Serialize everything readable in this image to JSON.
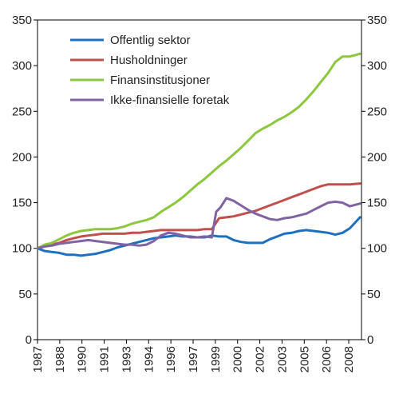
{
  "chart_data": {
    "type": "line",
    "title": "",
    "xlabel": "",
    "ylabel": "",
    "ylim": [
      0,
      350
    ],
    "yticks": [
      0,
      50,
      100,
      150,
      200,
      250,
      300,
      350
    ],
    "yticks_right": [
      0,
      50,
      100,
      150,
      200,
      250,
      300,
      350
    ],
    "xlim": [
      1987,
      2009.3
    ],
    "xtick_labels": [
      "1987",
      "1988",
      "1990",
      "1991",
      "1993",
      "1994",
      "1996",
      "1997",
      "1999",
      "2000",
      "2002",
      "2003",
      "2005",
      "2006",
      "2008"
    ],
    "grid": false,
    "legend_position": "top-left",
    "series": [
      {
        "name": "Offentlig sektor",
        "color": "#1f6fbf",
        "points": [
          [
            1987,
            100
          ],
          [
            1987.5,
            97
          ],
          [
            1988,
            96
          ],
          [
            1988.5,
            95
          ],
          [
            1989,
            93
          ],
          [
            1989.5,
            93
          ],
          [
            1990,
            92
          ],
          [
            1990.5,
            93
          ],
          [
            1991,
            94
          ],
          [
            1991.5,
            96
          ],
          [
            1992,
            98
          ],
          [
            1992.5,
            101
          ],
          [
            1993,
            103
          ],
          [
            1993.5,
            105
          ],
          [
            1994,
            107
          ],
          [
            1994.5,
            109
          ],
          [
            1995,
            111
          ],
          [
            1995.5,
            112
          ],
          [
            1996,
            113
          ],
          [
            1996.5,
            114
          ],
          [
            1997,
            113
          ],
          [
            1997.5,
            113
          ],
          [
            1998,
            112
          ],
          [
            1998.5,
            112
          ],
          [
            1999,
            114
          ],
          [
            1999.5,
            113
          ],
          [
            2000,
            113
          ],
          [
            2000.5,
            109
          ],
          [
            2001,
            107
          ],
          [
            2001.5,
            106
          ],
          [
            2002,
            106
          ],
          [
            2002.5,
            106
          ],
          [
            2003,
            110
          ],
          [
            2003.5,
            113
          ],
          [
            2004,
            116
          ],
          [
            2004.5,
            117
          ],
          [
            2005,
            119
          ],
          [
            2005.5,
            120
          ],
          [
            2006,
            119
          ],
          [
            2006.5,
            118
          ],
          [
            2007,
            117
          ],
          [
            2007.5,
            115
          ],
          [
            2008,
            117
          ],
          [
            2008.5,
            122
          ],
          [
            2009.2,
            134
          ]
        ]
      },
      {
        "name": "Husholdninger",
        "color": "#c0504d",
        "points": [
          [
            1987,
            100
          ],
          [
            1987.5,
            102
          ],
          [
            1988,
            104
          ],
          [
            1988.5,
            106
          ],
          [
            1989,
            109
          ],
          [
            1989.5,
            111
          ],
          [
            1990,
            113
          ],
          [
            1990.5,
            114
          ],
          [
            1991,
            115
          ],
          [
            1991.5,
            116
          ],
          [
            1992,
            116
          ],
          [
            1992.5,
            116
          ],
          [
            1993,
            116
          ],
          [
            1993.5,
            117
          ],
          [
            1994,
            117
          ],
          [
            1994.5,
            118
          ],
          [
            1995,
            119
          ],
          [
            1995.5,
            120
          ],
          [
            1996,
            120
          ],
          [
            1996.5,
            120
          ],
          [
            1997,
            120
          ],
          [
            1997.5,
            120
          ],
          [
            1998,
            120
          ],
          [
            1998.5,
            121
          ],
          [
            1999,
            121
          ],
          [
            1999.5,
            133
          ],
          [
            2000,
            134
          ],
          [
            2000.5,
            135
          ],
          [
            2001,
            137
          ],
          [
            2001.5,
            139
          ],
          [
            2002,
            141
          ],
          [
            2002.5,
            144
          ],
          [
            2003,
            147
          ],
          [
            2003.5,
            150
          ],
          [
            2004,
            153
          ],
          [
            2004.5,
            156
          ],
          [
            2005,
            159
          ],
          [
            2005.5,
            162
          ],
          [
            2006,
            165
          ],
          [
            2006.5,
            168
          ],
          [
            2007,
            170
          ],
          [
            2007.5,
            170
          ],
          [
            2008,
            170
          ],
          [
            2008.5,
            170
          ],
          [
            2009.2,
            171
          ]
        ]
      },
      {
        "name": "Finansinstitusjoner",
        "color": "#8dc63f",
        "points": [
          [
            1987,
            100
          ],
          [
            1987.5,
            104
          ],
          [
            1988,
            106
          ],
          [
            1988.5,
            110
          ],
          [
            1989,
            114
          ],
          [
            1989.5,
            117
          ],
          [
            1990,
            119
          ],
          [
            1990.5,
            120
          ],
          [
            1991,
            121
          ],
          [
            1991.5,
            121
          ],
          [
            1992,
            121
          ],
          [
            1992.5,
            122
          ],
          [
            1993,
            124
          ],
          [
            1993.5,
            127
          ],
          [
            1994,
            129
          ],
          [
            1994.5,
            131
          ],
          [
            1995,
            134
          ],
          [
            1995.5,
            140
          ],
          [
            1996,
            145
          ],
          [
            1996.5,
            150
          ],
          [
            1997,
            156
          ],
          [
            1997.5,
            163
          ],
          [
            1998,
            170
          ],
          [
            1998.5,
            176
          ],
          [
            1999,
            183
          ],
          [
            1999.5,
            190
          ],
          [
            2000,
            196
          ],
          [
            2000.5,
            203
          ],
          [
            2001,
            210
          ],
          [
            2001.5,
            218
          ],
          [
            2002,
            226
          ],
          [
            2002.5,
            231
          ],
          [
            2003,
            235
          ],
          [
            2003.5,
            240
          ],
          [
            2004,
            244
          ],
          [
            2004.5,
            249
          ],
          [
            2005,
            255
          ],
          [
            2005.5,
            263
          ],
          [
            2006,
            272
          ],
          [
            2006.5,
            282
          ],
          [
            2007,
            292
          ],
          [
            2007.5,
            304
          ],
          [
            2008,
            310
          ],
          [
            2008.5,
            310
          ],
          [
            2009.2,
            313
          ]
        ]
      },
      {
        "name": "Ikke-finansielle foretak",
        "color": "#8064a2",
        "points": [
          [
            1987,
            100
          ],
          [
            1987.5,
            102
          ],
          [
            1988,
            103
          ],
          [
            1988.5,
            105
          ],
          [
            1989,
            106
          ],
          [
            1989.5,
            107
          ],
          [
            1990,
            108
          ],
          [
            1990.5,
            109
          ],
          [
            1991,
            108
          ],
          [
            1991.5,
            107
          ],
          [
            1992,
            106
          ],
          [
            1992.5,
            105
          ],
          [
            1993,
            104
          ],
          [
            1993.5,
            104
          ],
          [
            1994,
            103
          ],
          [
            1994.5,
            104
          ],
          [
            1995,
            108
          ],
          [
            1995.5,
            114
          ],
          [
            1996,
            117
          ],
          [
            1996.5,
            116
          ],
          [
            1997,
            114
          ],
          [
            1997.5,
            112
          ],
          [
            1998,
            112
          ],
          [
            1998.5,
            113
          ],
          [
            1999,
            112
          ],
          [
            1999.3,
            140
          ],
          [
            1999.6,
            145
          ],
          [
            2000,
            155
          ],
          [
            2000.5,
            152
          ],
          [
            2001,
            147
          ],
          [
            2001.5,
            142
          ],
          [
            2002,
            138
          ],
          [
            2002.5,
            135
          ],
          [
            2003,
            132
          ],
          [
            2003.5,
            131
          ],
          [
            2004,
            133
          ],
          [
            2004.5,
            134
          ],
          [
            2005,
            136
          ],
          [
            2005.5,
            138
          ],
          [
            2006,
            142
          ],
          [
            2006.5,
            146
          ],
          [
            2007,
            150
          ],
          [
            2007.5,
            151
          ],
          [
            2008,
            150
          ],
          [
            2008.5,
            146
          ],
          [
            2009.2,
            149
          ]
        ]
      }
    ]
  }
}
